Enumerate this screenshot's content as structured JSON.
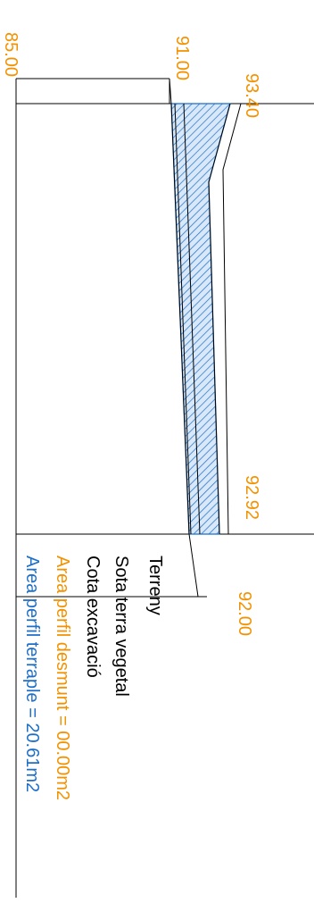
{
  "elevations": {
    "e1": "85.00",
    "e2": "91.00",
    "e3": "93.40",
    "e4": "92.92",
    "e5": "92.00"
  },
  "legend": {
    "terreny": "Terreny",
    "sota_terra_vegetal": "Sota terra vegetal",
    "cota_excavacio": "Cota excavació",
    "area_desmunt": "Area perfil desmunt = 00.00m2",
    "area_terraple": "Area perfil terraple = 20.61m2"
  },
  "colors": {
    "desmunt": "#f39200",
    "terraple": "#1d6fc8",
    "lines": "#000000"
  }
}
